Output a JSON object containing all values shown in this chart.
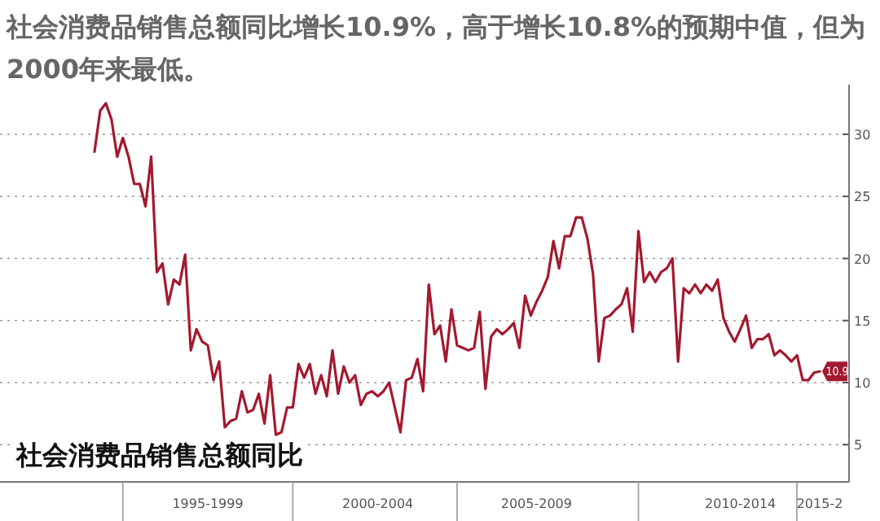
{
  "chart_data": {
    "type": "line",
    "title": "社会消费品销售总额同比增长10.9%，高于增长10.8%的预期中值，但为2000年来最低。",
    "annotations": [
      "社会消费品销售总额同比",
      {
        "text": "10.9",
        "x": "2015-2",
        "y": 10.9
      }
    ],
    "categories": [
      null,
      null,
      null,
      null,
      null,
      null,
      null,
      null,
      null,
      null,
      null,
      null,
      null,
      null,
      null,
      null,
      null,
      null,
      null,
      null,
      "1995-1999",
      null,
      null,
      null,
      null,
      null,
      null,
      null,
      null,
      null,
      null,
      null,
      null,
      null,
      null,
      null,
      null,
      null,
      null,
      null,
      null,
      null,
      null,
      null,
      null,
      null,
      null,
      null,
      null,
      null,
      "2000-2004",
      null,
      null,
      null,
      null,
      null,
      null,
      null,
      null,
      null,
      null,
      null,
      null,
      null,
      null,
      null,
      null,
      null,
      null,
      null,
      null,
      null,
      null,
      null,
      null,
      null,
      null,
      null,
      "2005-2009",
      null,
      null,
      null,
      null,
      null,
      null,
      null,
      null,
      null,
      null,
      null,
      null,
      null,
      null,
      null,
      null,
      null,
      null,
      null,
      null,
      null,
      null,
      null,
      null,
      null,
      null,
      null,
      null,
      null,
      null,
      null,
      null,
      null,
      null,
      null,
      "2010-2014",
      null,
      null,
      null,
      null,
      null,
      null,
      null,
      null,
      null,
      null,
      null,
      null,
      null,
      "2015-2"
    ],
    "ylim": [
      2,
      34
    ],
    "yticks": [
      5,
      10,
      15,
      20,
      25,
      30
    ],
    "grid": "y",
    "series": [
      {
        "color": "#a3192f",
        "values": [
          28.6,
          31.9,
          32.5,
          31.2,
          28.2,
          29.7,
          28.2,
          26.0,
          26.0,
          24.2,
          28.2,
          18.9,
          19.6,
          16.3,
          18.3,
          17.9,
          20.3,
          12.6,
          14.3,
          13.3,
          13.0,
          10.2,
          11.7,
          6.4,
          6.9,
          7.1,
          9.3,
          7.6,
          7.8,
          9.1,
          6.7,
          10.6,
          5.8,
          6.0,
          8.0,
          8.0,
          11.5,
          10.4,
          11.5,
          9.1,
          10.6,
          8.9,
          12.6,
          9.1,
          11.3,
          10.0,
          10.6,
          8.2,
          9.1,
          9.3,
          8.9,
          9.3,
          10.0,
          8.0,
          6.0,
          10.2,
          10.4,
          11.9,
          9.3,
          17.9,
          13.9,
          14.6,
          11.7,
          15.9,
          13.0,
          12.8,
          12.6,
          12.8,
          15.7,
          9.5,
          13.7,
          14.3,
          13.9,
          14.3,
          14.8,
          12.8,
          17.0,
          15.4,
          16.5,
          17.4,
          18.5,
          21.4,
          19.2,
          21.8,
          21.8,
          23.3,
          23.3,
          21.6,
          18.7,
          11.7,
          15.2,
          15.4,
          15.9,
          16.3,
          17.6,
          14.1,
          22.2,
          18.1,
          18.9,
          18.1,
          18.9,
          19.2,
          20.0,
          11.7,
          17.6,
          17.2,
          17.9,
          17.2,
          17.9,
          17.4,
          18.3,
          15.2,
          14.1,
          13.3,
          14.3,
          15.4,
          12.8,
          13.5,
          13.5,
          13.9,
          12.2,
          12.6,
          12.2,
          11.7,
          12.2,
          10.2,
          10.2,
          10.8,
          10.9
        ]
      }
    ]
  }
}
